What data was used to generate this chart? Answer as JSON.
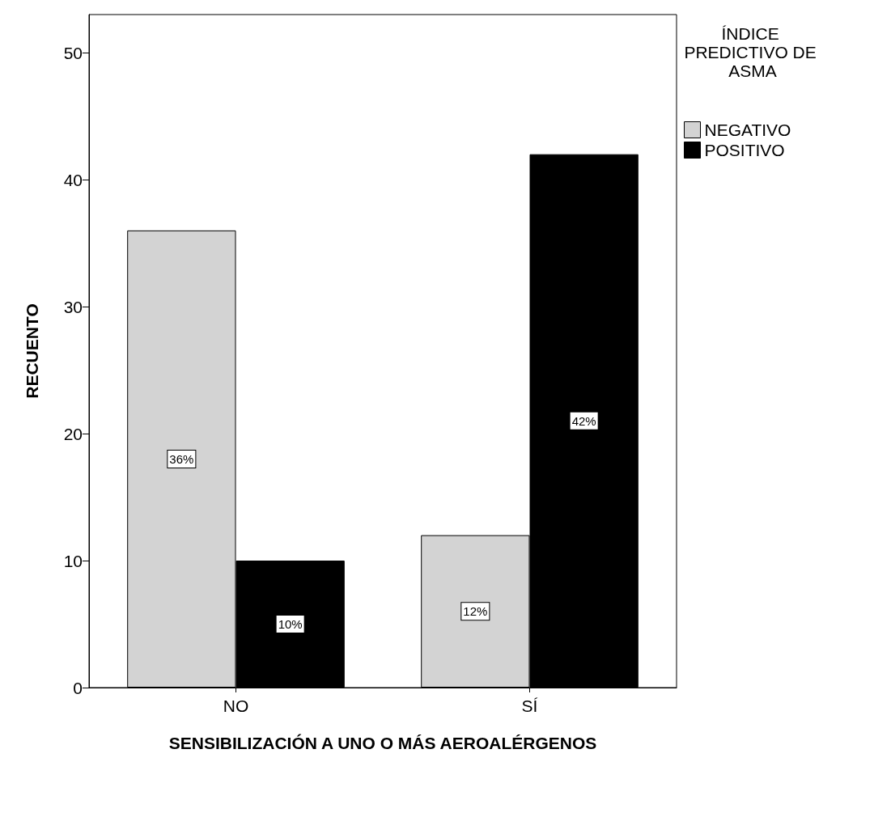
{
  "chart_data": {
    "type": "bar",
    "xlabel": "SENSIBILIZACIÓN A UNO O MÁS AEROALÉRGENOS",
    "ylabel": "RECUENTO",
    "legend_title": "ÍNDICE PREDICTIVO DE ASMA",
    "categories": [
      "NO",
      "SÍ"
    ],
    "series": [
      {
        "name": "NEGATIVO",
        "color": "#d3d3d3",
        "values": [
          36,
          12
        ],
        "value_labels": [
          "36%",
          "12%"
        ]
      },
      {
        "name": "POSITIVO",
        "color": "#000000",
        "values": [
          10,
          42
        ],
        "value_labels": [
          "10%",
          "42%"
        ]
      }
    ],
    "ylim": [
      0,
      53
    ],
    "yticks": [
      0,
      10,
      20,
      30,
      40,
      50
    ],
    "grid": false,
    "legend": "top right"
  }
}
